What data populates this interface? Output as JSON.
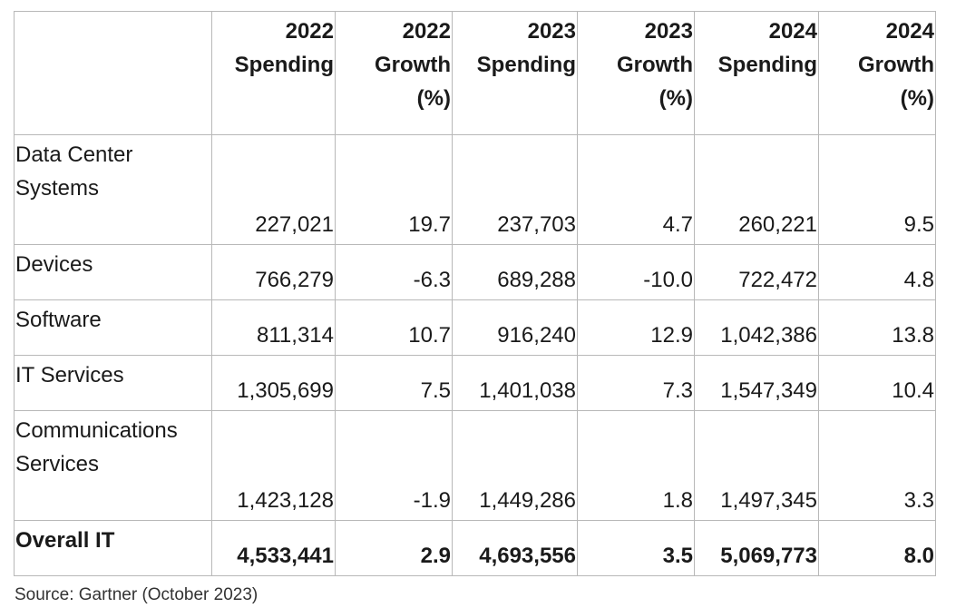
{
  "table": {
    "headers": [
      {
        "line1": "",
        "line2": "",
        "line3": ""
      },
      {
        "line1": "2022",
        "line2": "Spending",
        "line3": ""
      },
      {
        "line1": "2022",
        "line2": "Growth",
        "line3": "(%)"
      },
      {
        "line1": "2023",
        "line2": "Spending",
        "line3": ""
      },
      {
        "line1": "2023",
        "line2": "Growth",
        "line3": "(%)"
      },
      {
        "line1": "2024",
        "line2": "Spending",
        "line3": ""
      },
      {
        "line1": "2024",
        "line2": "Growth",
        "line3": "(%)"
      }
    ],
    "rows": [
      {
        "label_line1": "Data Center",
        "label_line2": "Systems",
        "values": [
          "227,021",
          "19.7",
          "237,703",
          "4.7",
          "260,221",
          "9.5"
        ]
      },
      {
        "label_line1": "Devices",
        "label_line2": "",
        "values": [
          "766,279",
          "-6.3",
          "689,288",
          "-10.0",
          "722,472",
          "4.8"
        ]
      },
      {
        "label_line1": "Software",
        "label_line2": "",
        "values": [
          "811,314",
          "10.7",
          "916,240",
          "12.9",
          "1,042,386",
          "13.8"
        ]
      },
      {
        "label_line1": "IT Services",
        "label_line2": "",
        "values": [
          "1,305,699",
          "7.5",
          "1,401,038",
          "7.3",
          "1,547,349",
          "10.4"
        ]
      },
      {
        "label_line1": "Communications",
        "label_line2": "Services",
        "values": [
          "1,423,128",
          "-1.9",
          "1,449,286",
          "1.8",
          "1,497,345",
          "3.3"
        ]
      },
      {
        "label_line1": "Overall IT",
        "label_line2": "",
        "values": [
          "4,533,441",
          "2.9",
          "4,693,556",
          "3.5",
          "5,069,773",
          "8.0"
        ]
      }
    ]
  },
  "source": "Source: Gartner (October 2023)"
}
